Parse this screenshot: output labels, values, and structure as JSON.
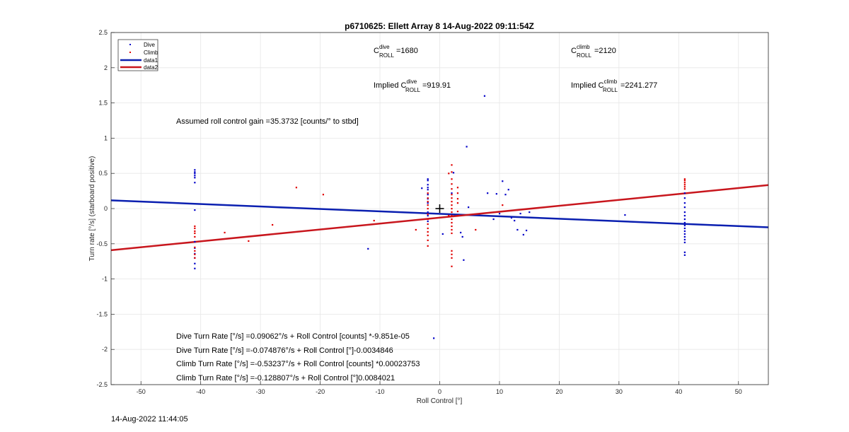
{
  "chart_data": {
    "type": "scatter",
    "title": "p6710625: Ellett Array 8 14-Aug-2022 09:11:54Z",
    "xlabel": "Roll Control [°]",
    "ylabel": "Turn rate [°/s] (starboard positive)",
    "xlim": [
      -55,
      55
    ],
    "ylim": [
      -2.5,
      2.5
    ],
    "x_ticks": [
      -50,
      -40,
      -30,
      -20,
      -10,
      0,
      10,
      20,
      30,
      40,
      50
    ],
    "y_ticks": [
      -2.5,
      -2,
      -1.5,
      -1,
      -0.5,
      0,
      0.5,
      1,
      1.5,
      2,
      2.5
    ],
    "grid": true,
    "legend_position": "top-left",
    "colors": {
      "dive": "#0000c8",
      "climb": "#e00000",
      "data1": "#0a1fb0",
      "data2": "#c8161d"
    },
    "series": [
      {
        "name": "Dive",
        "kind": "points",
        "points": [
          [
            -41,
            0.55
          ],
          [
            -41,
            0.52
          ],
          [
            -41,
            0.5
          ],
          [
            -41,
            0.47
          ],
          [
            -41,
            0.44
          ],
          [
            -41,
            0.37
          ],
          [
            -41,
            -0.02
          ],
          [
            -41,
            -0.47
          ],
          [
            -41,
            -0.56
          ],
          [
            -41,
            -0.64
          ],
          [
            -41,
            -0.7
          ],
          [
            -41,
            -0.78
          ],
          [
            -41,
            -0.85
          ],
          [
            -12,
            -0.57
          ],
          [
            -3,
            0.29
          ],
          [
            -2,
            0.42
          ],
          [
            -2,
            0.4
          ],
          [
            -2,
            0.34
          ],
          [
            -2,
            0.3
          ],
          [
            -2,
            0.27
          ],
          [
            -2,
            0.2
          ],
          [
            -2,
            0.14
          ],
          [
            -2,
            0.08
          ],
          [
            -2,
            -0.05
          ],
          [
            -2,
            -0.1
          ],
          [
            -2,
            -0.18
          ],
          [
            -1,
            -1.84
          ],
          [
            0.5,
            -0.36
          ],
          [
            2,
            0.22
          ],
          [
            2.3,
            0.51
          ],
          [
            3.5,
            -0.34
          ],
          [
            3.8,
            -0.4
          ],
          [
            4,
            -0.73
          ],
          [
            4.5,
            0.88
          ],
          [
            4.8,
            0.02
          ],
          [
            7.5,
            1.6
          ],
          [
            8,
            0.22
          ],
          [
            9,
            -0.15
          ],
          [
            9.5,
            0.21
          ],
          [
            10,
            -0.07
          ],
          [
            10.5,
            0.39
          ],
          [
            11,
            0.2
          ],
          [
            11.5,
            0.27
          ],
          [
            12,
            -0.13
          ],
          [
            12.5,
            -0.17
          ],
          [
            13,
            -0.3
          ],
          [
            13.5,
            -0.07
          ],
          [
            14,
            -0.37
          ],
          [
            14.5,
            -0.31
          ],
          [
            15,
            -0.05
          ],
          [
            31,
            -0.09
          ],
          [
            41,
            0.22
          ],
          [
            41,
            0.15
          ],
          [
            41,
            0.08
          ],
          [
            41,
            0.02
          ],
          [
            41,
            -0.05
          ],
          [
            41,
            -0.1
          ],
          [
            41,
            -0.15
          ],
          [
            41,
            -0.2
          ],
          [
            41,
            -0.24
          ],
          [
            41,
            -0.28
          ],
          [
            41,
            -0.32
          ],
          [
            41,
            -0.36
          ],
          [
            41,
            -0.4
          ],
          [
            41,
            -0.44
          ],
          [
            41,
            -0.48
          ],
          [
            41,
            -0.62
          ],
          [
            41,
            -0.66
          ]
        ]
      },
      {
        "name": "Climb",
        "kind": "points",
        "points": [
          [
            -41,
            -0.25
          ],
          [
            -41,
            -0.28
          ],
          [
            -41,
            -0.32
          ],
          [
            -41,
            -0.35
          ],
          [
            -41,
            -0.4
          ],
          [
            -41,
            -0.55
          ],
          [
            -41,
            -0.6
          ],
          [
            -41,
            -0.65
          ],
          [
            -41,
            -0.7
          ],
          [
            -36,
            -0.34
          ],
          [
            -32,
            -0.46
          ],
          [
            -28,
            -0.23
          ],
          [
            -24,
            0.3
          ],
          [
            -19.5,
            0.2
          ],
          [
            -11,
            -0.17
          ],
          [
            -4,
            -0.3
          ],
          [
            -2,
            0.22
          ],
          [
            -2,
            0.15
          ],
          [
            -2,
            0.1
          ],
          [
            -2,
            0.05
          ],
          [
            -2,
            0.0
          ],
          [
            -2,
            -0.08
          ],
          [
            -2,
            -0.15
          ],
          [
            -2,
            -0.22
          ],
          [
            -2,
            -0.28
          ],
          [
            -2,
            -0.33
          ],
          [
            -2,
            -0.38
          ],
          [
            -2,
            -0.45
          ],
          [
            -2,
            -0.53
          ],
          [
            1.5,
            -0.1
          ],
          [
            1.5,
            0.5
          ],
          [
            2,
            0.62
          ],
          [
            2,
            0.52
          ],
          [
            2,
            0.42
          ],
          [
            2,
            0.35
          ],
          [
            2,
            0.28
          ],
          [
            2,
            0.2
          ],
          [
            2,
            0.15
          ],
          [
            2,
            0.1
          ],
          [
            2,
            0.05
          ],
          [
            2,
            0.0
          ],
          [
            2,
            -0.05
          ],
          [
            2,
            -0.1
          ],
          [
            2,
            -0.15
          ],
          [
            2,
            -0.2
          ],
          [
            2,
            -0.25
          ],
          [
            2,
            -0.3
          ],
          [
            2,
            -0.35
          ],
          [
            2,
            -0.6
          ],
          [
            2,
            -0.65
          ],
          [
            2,
            -0.7
          ],
          [
            2,
            -0.82
          ],
          [
            3,
            0.3
          ],
          [
            3,
            0.22
          ],
          [
            3,
            0.14
          ],
          [
            3,
            0.08
          ],
          [
            3,
            -0.04
          ],
          [
            3,
            -0.1
          ],
          [
            6,
            -0.3
          ],
          [
            10.5,
            0.05
          ],
          [
            41,
            0.42
          ],
          [
            41,
            0.4
          ],
          [
            41,
            0.37
          ],
          [
            41,
            0.34
          ],
          [
            41,
            0.31
          ],
          [
            41,
            0.28
          ]
        ]
      },
      {
        "name": "data1",
        "kind": "line",
        "slope": -0.0034846,
        "intercept": -0.074876
      },
      {
        "name": "data2",
        "kind": "line",
        "slope": 0.0084021,
        "intercept": -0.128807
      }
    ],
    "marker": {
      "x": 0,
      "y": 0,
      "symbol": "+"
    },
    "annotations": {
      "c_dive": {
        "base": "C",
        "sup": "dive",
        "sub": "ROLL",
        "value": "=1680"
      },
      "c_climb": {
        "base": "C",
        "sup": "climb",
        "sub": "ROLL",
        "value": "=2120"
      },
      "implied_dive": {
        "prefix": "Implied ",
        "base": "C",
        "sup": "dive",
        "sub": "ROLL",
        "value": "=919.91"
      },
      "implied_climb": {
        "prefix": "Implied ",
        "base": "C",
        "sup": "climb",
        "sub": "ROLL",
        "value": "=2241.277"
      },
      "gain": "Assumed roll control gain =35.3732 [counts/° to stbd]",
      "eq1": "Dive Turn Rate [°/s] =0.09062°/s + Roll Control [counts] *-9.851e-05",
      "eq2": "Dive Turn Rate [°/s] =-0.074876°/s + Roll Control [°]-0.0034846",
      "eq3": "Climb Turn Rate [°/s] =-0.53237°/s + Roll Control [counts] *0.00023753",
      "eq4": "Climb Turn Rate [°/s] =-0.128807°/s + Roll Control [°]0.0084021"
    }
  },
  "footer": {
    "timestamp": "14-Aug-2022 11:44:05"
  }
}
